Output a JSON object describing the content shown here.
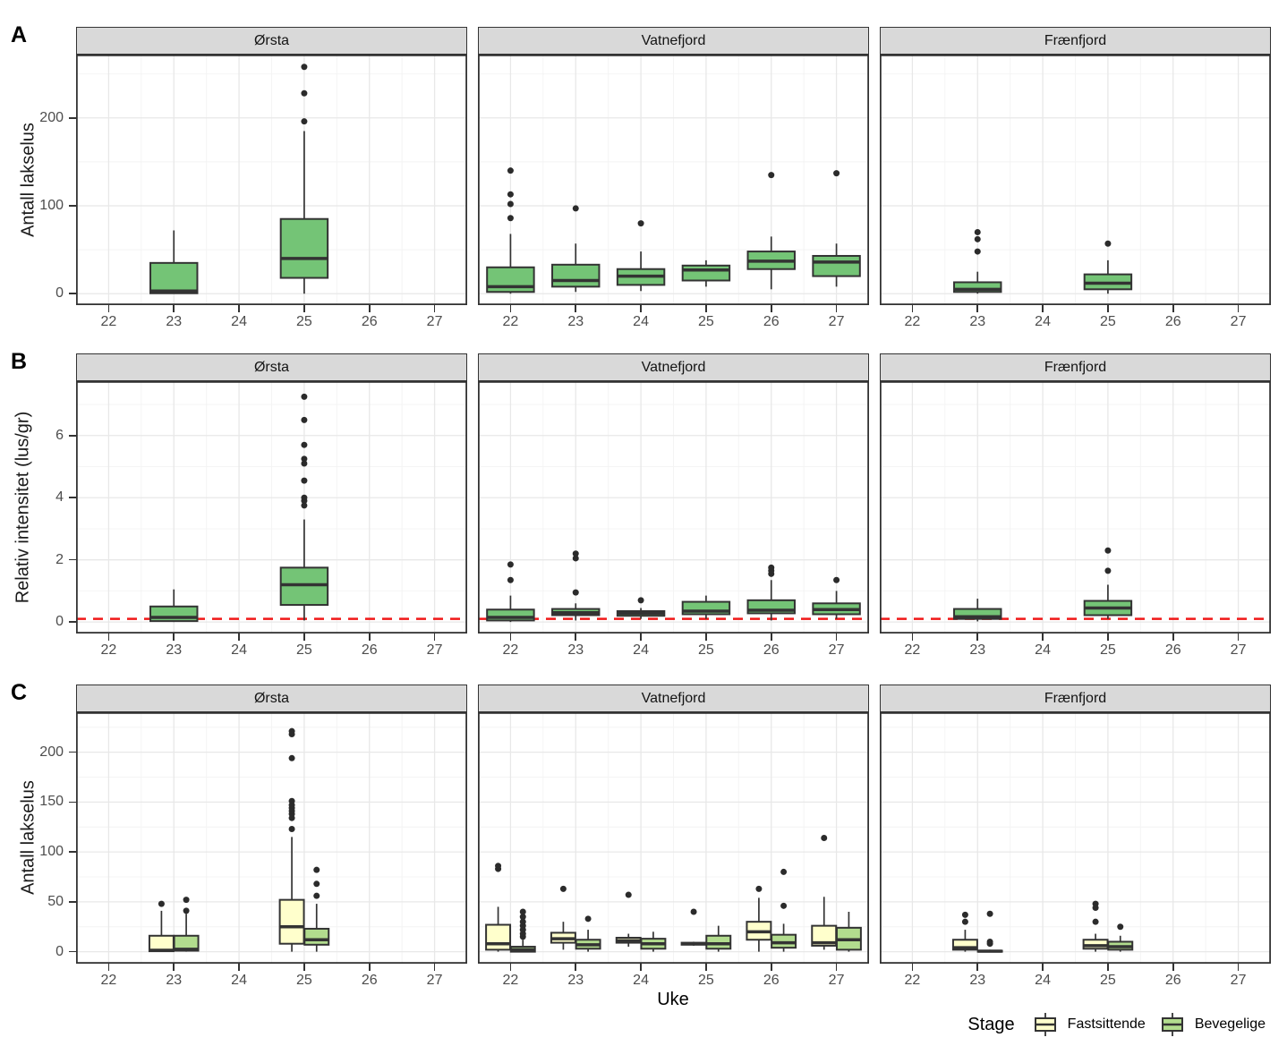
{
  "figure": {
    "x_label": "Uke",
    "x_ticks": [
      22,
      23,
      24,
      25,
      26,
      27
    ],
    "x_minor": [
      22.5,
      23.5,
      24.5,
      25.5,
      26.5
    ],
    "x_domain": [
      21.5,
      27.5
    ],
    "facet_names": [
      "Ørsta",
      "Vatnefjord",
      "Frænfjord"
    ],
    "colors": {
      "groups": {
        "single": "#74c476",
        "Fastsittende": "#ffffcc",
        "Bevegelige": "#b2dc8e"
      },
      "outline": "#333333",
      "outlier": "#2b2b2b",
      "strip_bg": "#d9d9d9",
      "grid_major": "#e8e8e8",
      "grid_minor": "#f4f4f4",
      "ref_line": "#f01818",
      "tick_text": "#4d4d4d"
    },
    "legend": {
      "title": "Stage",
      "items": [
        {
          "label": "Fastsittende",
          "color": "#ffffcc"
        },
        {
          "label": "Bevegelige",
          "color": "#b2dc8e"
        }
      ]
    }
  },
  "chart_data": [
    {
      "type": "boxplot",
      "panel_label": "A",
      "ylabel": "Antall lakselus",
      "y_ticks": [
        0,
        100,
        200
      ],
      "y_minor": [
        50,
        150,
        250
      ],
      "ylim": [
        -13,
        272
      ],
      "ref_line": null,
      "dodged": false,
      "facets": [
        {
          "name": "Ørsta",
          "boxes": [
            {
              "x": 23,
              "group": "single",
              "stats": {
                "low": 0,
                "q1": 0.5,
                "med": 3,
                "q3": 35,
                "high": 72
              },
              "outliers": []
            },
            {
              "x": 25,
              "group": "single",
              "stats": {
                "low": 0,
                "q1": 18,
                "med": 40,
                "q3": 85,
                "high": 185
              },
              "outliers": [
                196,
                228,
                258
              ]
            }
          ]
        },
        {
          "name": "Vatnefjord",
          "boxes": [
            {
              "x": 22,
              "group": "single",
              "stats": {
                "low": 0,
                "q1": 2,
                "med": 8,
                "q3": 30,
                "high": 68
              },
              "outliers": [
                86,
                102,
                113,
                140
              ]
            },
            {
              "x": 23,
              "group": "single",
              "stats": {
                "low": 2,
                "q1": 8,
                "med": 15,
                "q3": 33,
                "high": 57
              },
              "outliers": [
                97
              ]
            },
            {
              "x": 24,
              "group": "single",
              "stats": {
                "low": 3,
                "q1": 10,
                "med": 20,
                "q3": 28,
                "high": 48
              },
              "outliers": [
                80
              ]
            },
            {
              "x": 25,
              "group": "single",
              "stats": {
                "low": 8,
                "q1": 15,
                "med": 27,
                "q3": 32,
                "high": 38
              },
              "outliers": []
            },
            {
              "x": 26,
              "group": "single",
              "stats": {
                "low": 5,
                "q1": 28,
                "med": 37,
                "q3": 48,
                "high": 65
              },
              "outliers": [
                135
              ]
            },
            {
              "x": 27,
              "group": "single",
              "stats": {
                "low": 8,
                "q1": 20,
                "med": 36,
                "q3": 43,
                "high": 57
              },
              "outliers": [
                137
              ]
            }
          ]
        },
        {
          "name": "Frænfjord",
          "boxes": [
            {
              "x": 23,
              "group": "single",
              "stats": {
                "low": 0,
                "q1": 2,
                "med": 5,
                "q3": 13,
                "high": 25
              },
              "outliers": [
                48,
                62,
                70
              ]
            },
            {
              "x": 25,
              "group": "single",
              "stats": {
                "low": 0,
                "q1": 5,
                "med": 12,
                "q3": 22,
                "high": 38
              },
              "outliers": [
                57
              ]
            }
          ]
        }
      ]
    },
    {
      "type": "boxplot",
      "panel_label": "B",
      "ylabel": "Relativ intensitet (lus/gr)",
      "y_ticks": [
        0,
        2,
        4,
        6
      ],
      "y_minor": [
        1,
        3,
        5,
        7
      ],
      "ylim": [
        -0.37,
        7.75
      ],
      "ref_line": 0.1,
      "dodged": false,
      "facets": [
        {
          "name": "Ørsta",
          "boxes": [
            {
              "x": 23,
              "group": "single",
              "stats": {
                "low": 0,
                "q1": 0.03,
                "med": 0.15,
                "q3": 0.5,
                "high": 1.05
              },
              "outliers": []
            },
            {
              "x": 25,
              "group": "single",
              "stats": {
                "low": 0.05,
                "q1": 0.55,
                "med": 1.2,
                "q3": 1.75,
                "high": 3.3
              },
              "outliers": [
                3.75,
                3.9,
                4.0,
                4.55,
                5.1,
                5.25,
                5.7,
                6.5,
                7.25
              ]
            }
          ]
        },
        {
          "name": "Vatnefjord",
          "boxes": [
            {
              "x": 22,
              "group": "single",
              "stats": {
                "low": 0,
                "q1": 0.05,
                "med": 0.15,
                "q3": 0.4,
                "high": 0.85
              },
              "outliers": [
                1.35,
                1.85
              ]
            },
            {
              "x": 23,
              "group": "single",
              "stats": {
                "low": 0.05,
                "q1": 0.22,
                "med": 0.3,
                "q3": 0.42,
                "high": 0.6
              },
              "outliers": [
                0.95,
                2.05,
                2.2
              ]
            },
            {
              "x": 24,
              "group": "single",
              "stats": {
                "low": 0.1,
                "q1": 0.2,
                "med": 0.28,
                "q3": 0.35,
                "high": 0.45
              },
              "outliers": [
                0.7
              ]
            },
            {
              "x": 25,
              "group": "single",
              "stats": {
                "low": 0.1,
                "q1": 0.25,
                "med": 0.35,
                "q3": 0.65,
                "high": 0.85
              },
              "outliers": []
            },
            {
              "x": 26,
              "group": "single",
              "stats": {
                "low": 0.05,
                "q1": 0.28,
                "med": 0.38,
                "q3": 0.7,
                "high": 1.35
              },
              "outliers": [
                1.55,
                1.65,
                1.75
              ]
            },
            {
              "x": 27,
              "group": "single",
              "stats": {
                "low": 0.1,
                "q1": 0.25,
                "med": 0.4,
                "q3": 0.6,
                "high": 1.0
              },
              "outliers": [
                1.35
              ]
            }
          ]
        },
        {
          "name": "Frænfjord",
          "boxes": [
            {
              "x": 23,
              "group": "single",
              "stats": {
                "low": 0.02,
                "q1": 0.1,
                "med": 0.17,
                "q3": 0.42,
                "high": 0.75
              },
              "outliers": []
            },
            {
              "x": 25,
              "group": "single",
              "stats": {
                "low": 0.1,
                "q1": 0.22,
                "med": 0.45,
                "q3": 0.68,
                "high": 1.2
              },
              "outliers": [
                1.65,
                2.3
              ]
            }
          ]
        }
      ]
    },
    {
      "type": "boxplot",
      "panel_label": "C",
      "ylabel": "Antall lakselus",
      "y_ticks": [
        0,
        50,
        100,
        150,
        200
      ],
      "y_minor": [
        25,
        75,
        125,
        175,
        225
      ],
      "ylim": [
        -12,
        240
      ],
      "ref_line": null,
      "dodged": true,
      "facets": [
        {
          "name": "Ørsta",
          "boxes": [
            {
              "x": 23,
              "group": "Fastsittende",
              "stats": {
                "low": 0,
                "q1": 0.5,
                "med": 1.5,
                "q3": 16,
                "high": 41
              },
              "outliers": [
                48
              ]
            },
            {
              "x": 23,
              "group": "Bevegelige",
              "stats": {
                "low": 0,
                "q1": 1,
                "med": 2.5,
                "q3": 16,
                "high": 38
              },
              "outliers": [
                41,
                52
              ]
            },
            {
              "x": 25,
              "group": "Fastsittende",
              "stats": {
                "low": 0,
                "q1": 8,
                "med": 25,
                "q3": 52,
                "high": 115
              },
              "outliers": [
                123,
                134,
                138,
                141,
                144,
                147,
                151,
                194,
                218,
                221
              ]
            },
            {
              "x": 25,
              "group": "Bevegelige",
              "stats": {
                "low": 0,
                "q1": 7,
                "med": 12,
                "q3": 23,
                "high": 48
              },
              "outliers": [
                56,
                68,
                82
              ]
            }
          ]
        },
        {
          "name": "Vatnefjord",
          "boxes": [
            {
              "x": 22,
              "group": "Fastsittende",
              "stats": {
                "low": 0,
                "q1": 2,
                "med": 8,
                "q3": 27,
                "high": 45
              },
              "outliers": [
                83,
                86
              ]
            },
            {
              "x": 22,
              "group": "Bevegelige",
              "stats": {
                "low": 0,
                "q1": 0,
                "med": 2,
                "q3": 5,
                "high": 12
              },
              "outliers": [
                15,
                18,
                22,
                26,
                30,
                35,
                40
              ]
            },
            {
              "x": 23,
              "group": "Fastsittende",
              "stats": {
                "low": 2,
                "q1": 9,
                "med": 13,
                "q3": 19,
                "high": 30
              },
              "outliers": [
                63
              ]
            },
            {
              "x": 23,
              "group": "Bevegelige",
              "stats": {
                "low": 0,
                "q1": 3,
                "med": 7,
                "q3": 12,
                "high": 22
              },
              "outliers": [
                33
              ]
            },
            {
              "x": 24,
              "group": "Fastsittende",
              "stats": {
                "low": 5,
                "q1": 9,
                "med": 11,
                "q3": 14,
                "high": 18
              },
              "outliers": [
                57
              ]
            },
            {
              "x": 24,
              "group": "Bevegelige",
              "stats": {
                "low": 0,
                "q1": 3,
                "med": 8,
                "q3": 13,
                "high": 20
              },
              "outliers": []
            },
            {
              "x": 25,
              "group": "Fastsittende",
              "stats": {
                "low": 6,
                "q1": 7,
                "med": 8,
                "q3": 9,
                "high": 10
              },
              "outliers": [
                40
              ]
            },
            {
              "x": 25,
              "group": "Bevegelige",
              "stats": {
                "low": 0,
                "q1": 3,
                "med": 8,
                "q3": 16,
                "high": 26
              },
              "outliers": []
            },
            {
              "x": 26,
              "group": "Fastsittende",
              "stats": {
                "low": 0,
                "q1": 12,
                "med": 20,
                "q3": 30,
                "high": 54
              },
              "outliers": [
                63
              ]
            },
            {
              "x": 26,
              "group": "Bevegelige",
              "stats": {
                "low": 0,
                "q1": 4,
                "med": 9,
                "q3": 17,
                "high": 28
              },
              "outliers": [
                46,
                80
              ]
            },
            {
              "x": 27,
              "group": "Fastsittende",
              "stats": {
                "low": 2,
                "q1": 6,
                "med": 9,
                "q3": 26,
                "high": 55
              },
              "outliers": [
                114
              ]
            },
            {
              "x": 27,
              "group": "Bevegelige",
              "stats": {
                "low": 0,
                "q1": 2,
                "med": 12,
                "q3": 24,
                "high": 40
              },
              "outliers": []
            }
          ]
        },
        {
          "name": "Frænfjord",
          "boxes": [
            {
              "x": 23,
              "group": "Fastsittende",
              "stats": {
                "low": 0,
                "q1": 2,
                "med": 4,
                "q3": 12,
                "high": 22
              },
              "outliers": [
                30,
                37
              ]
            },
            {
              "x": 23,
              "group": "Bevegelige",
              "stats": {
                "low": 0,
                "q1": 0,
                "med": 0.5,
                "q3": 1,
                "high": 2
              },
              "outliers": [
                8,
                10,
                38
              ]
            },
            {
              "x": 25,
              "group": "Fastsittende",
              "stats": {
                "low": 0,
                "q1": 3,
                "med": 6,
                "q3": 12,
                "high": 18
              },
              "outliers": [
                30,
                44,
                48
              ]
            },
            {
              "x": 25,
              "group": "Bevegelige",
              "stats": {
                "low": 0,
                "q1": 2,
                "med": 5,
                "q3": 10,
                "high": 16
              },
              "outliers": [
                25
              ]
            }
          ]
        }
      ]
    }
  ]
}
